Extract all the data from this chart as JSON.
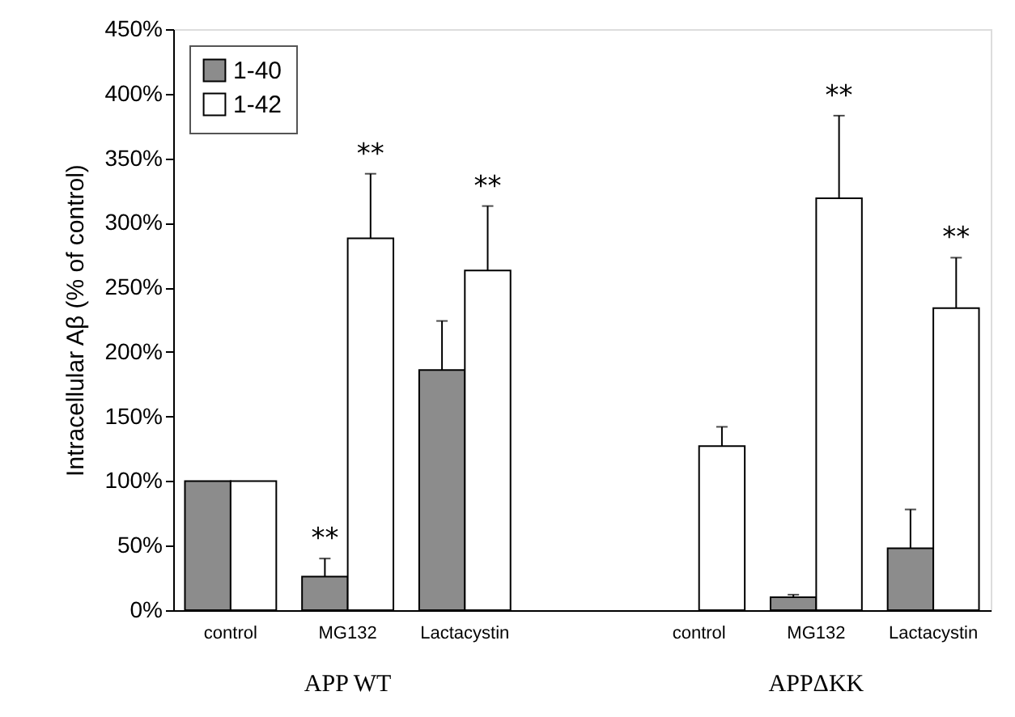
{
  "chart_data": {
    "type": "bar",
    "ylabel": "Intracellular Aβ (% of control)",
    "categories": [
      "control",
      "MG132",
      "Lactacystin",
      null,
      "control",
      "MG132",
      "Lactacystin"
    ],
    "series": [
      {
        "name": "1-40",
        "color": "#8c8c8c",
        "values": [
          100,
          26,
          186,
          null,
          null,
          10,
          48
        ],
        "errors": [
          null,
          [
            26,
            40
          ],
          [
            186,
            224
          ],
          null,
          null,
          [
            10,
            12
          ],
          [
            48,
            78
          ]
        ],
        "value_labels": [
          null,
          "**",
          null,
          null,
          null,
          null,
          null
        ]
      },
      {
        "name": "1-42",
        "color": "#ffffff",
        "values": [
          100,
          288,
          263,
          null,
          127,
          319,
          234
        ],
        "errors": [
          null,
          [
            288,
            338
          ],
          [
            263,
            313
          ],
          null,
          [
            127,
            142
          ],
          [
            319,
            383
          ],
          [
            234,
            273
          ]
        ],
        "value_labels": [
          null,
          "**",
          "**",
          null,
          null,
          "**",
          "**"
        ]
      }
    ],
    "ylim": [
      0,
      450
    ],
    "yticks": [
      {
        "value": 0,
        "label": "0%"
      },
      {
        "value": 50,
        "label": "50%"
      },
      {
        "value": 100,
        "label": "100%"
      },
      {
        "value": 150,
        "label": "150%"
      },
      {
        "value": 200,
        "label": "200%"
      },
      {
        "value": 250,
        "label": "250%"
      },
      {
        "value": 300,
        "label": "300%"
      },
      {
        "value": 350,
        "label": "350%"
      },
      {
        "value": 400,
        "label": "400%"
      },
      {
        "value": 450,
        "label": "450%"
      }
    ],
    "annotations": [
      "APP WT",
      "APPΔKK"
    ],
    "legend": "top left",
    "grid": false
  }
}
